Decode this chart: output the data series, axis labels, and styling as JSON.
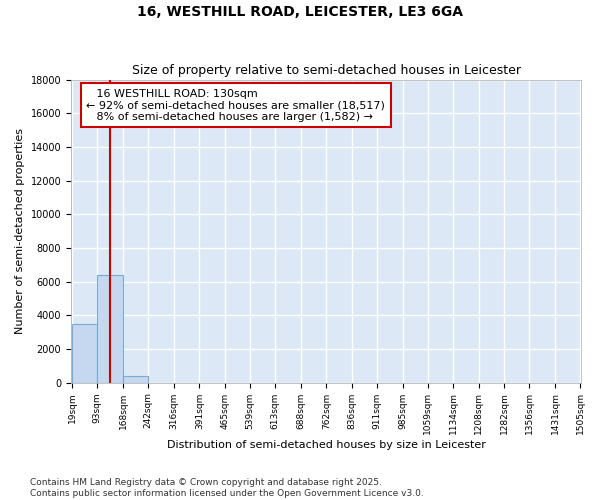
{
  "title": "16, WESTHILL ROAD, LEICESTER, LE3 6GA",
  "subtitle": "Size of property relative to semi-detached houses in Leicester",
  "xlabel": "Distribution of semi-detached houses by size in Leicester",
  "ylabel": "Number of semi-detached properties",
  "bin_edges": [
    19,
    93,
    168,
    242,
    316,
    391,
    465,
    539,
    613,
    688,
    762,
    836,
    911,
    985,
    1059,
    1134,
    1208,
    1282,
    1356,
    1431,
    1505
  ],
  "bin_labels": [
    "19sqm",
    "93sqm",
    "168sqm",
    "242sqm",
    "316sqm",
    "391sqm",
    "465sqm",
    "539sqm",
    "613sqm",
    "688sqm",
    "762sqm",
    "836sqm",
    "911sqm",
    "985sqm",
    "1059sqm",
    "1134sqm",
    "1208sqm",
    "1282sqm",
    "1356sqm",
    "1431sqm",
    "1505sqm"
  ],
  "bar_heights": [
    3500,
    6400,
    400,
    0,
    0,
    0,
    0,
    0,
    0,
    0,
    0,
    0,
    0,
    0,
    0,
    0,
    0,
    0,
    0,
    0
  ],
  "bar_color": "#c5d8f0",
  "bar_edge_color": "#7aaad0",
  "subject_size": 130,
  "subject_label": "16 WESTHILL ROAD: 130sqm",
  "pct_smaller": 92,
  "count_smaller": 18517,
  "pct_larger": 8,
  "count_larger": 1582,
  "annotation_box_color": "#cc0000",
  "vline_color": "#cc0000",
  "ylim": [
    0,
    18000
  ],
  "yticks": [
    0,
    2000,
    4000,
    6000,
    8000,
    10000,
    12000,
    14000,
    16000,
    18000
  ],
  "background_color": "#dce8f5",
  "grid_color": "#ffffff",
  "footer_line1": "Contains HM Land Registry data © Crown copyright and database right 2025.",
  "footer_line2": "Contains public sector information licensed under the Open Government Licence v3.0.",
  "title_fontsize": 10,
  "subtitle_fontsize": 9,
  "annotation_fontsize": 8,
  "footer_fontsize": 6.5,
  "ylabel_fontsize": 8,
  "xlabel_fontsize": 8
}
